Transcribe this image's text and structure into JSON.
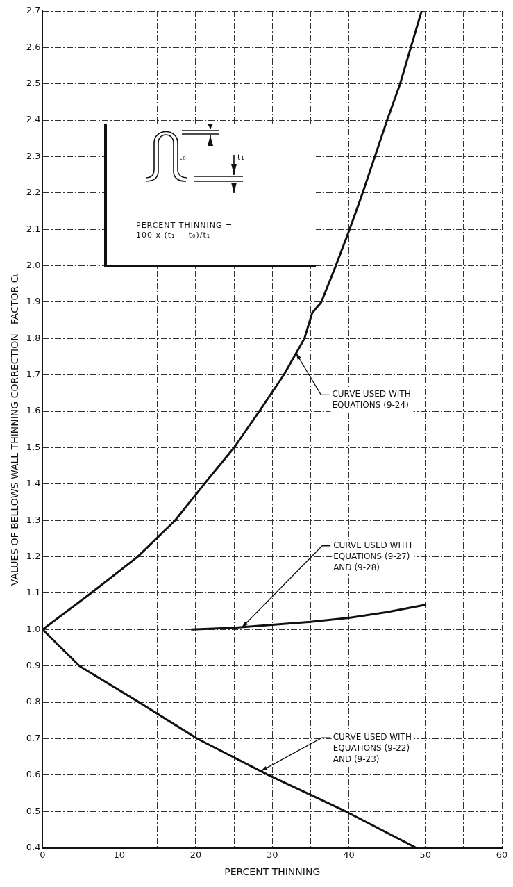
{
  "chart_data": {
    "type": "line",
    "xlabel": "PERCENT THINNING",
    "ylabel": "VALUES OF BELLOWS WALL THINNING CORRECTION   FACTOR Cₜ",
    "xlim": [
      0,
      60
    ],
    "ylim": [
      0.4,
      2.7
    ],
    "xticks": [
      0,
      {
        "value": 5,
        "label": null
      },
      10,
      {
        "value": 15,
        "label": null
      },
      20,
      {
        "value": 25,
        "label": null
      },
      30,
      {
        "value": 35,
        "label": null
      },
      40,
      {
        "value": 45,
        "label": null
      },
      50,
      {
        "value": 55,
        "label": null
      },
      60
    ],
    "yticks": [
      0.4,
      0.5,
      0.6,
      0.7,
      0.8,
      0.9,
      {
        "value": 1,
        "label": "1.0"
      },
      1.1,
      1.2,
      1.3,
      1.4,
      1.5,
      1.6,
      1.7,
      1.8,
      1.9,
      {
        "value": 2,
        "label": "2.0"
      },
      2.1,
      2.2,
      2.3,
      2.4,
      2.5,
      2.6,
      2.7
    ],
    "grid": true,
    "legend": false,
    "marker": "none",
    "line_style": "solid",
    "series": [
      {
        "color": "#111111",
        "x": [
          0,
          6.3,
          12.4,
          17.3,
          21.1,
          25,
          28.3,
          31.5,
          34.2,
          35.2,
          36.4,
          38.3,
          40.1,
          41.8,
          43.4,
          45,
          46.7,
          48.1,
          49.5
        ],
        "values": [
          1,
          1.1,
          1.2,
          1.3,
          1.4,
          1.5,
          1.6,
          1.7,
          1.8,
          1.87,
          1.9,
          2,
          2.1,
          2.2,
          2.3,
          2.4,
          2.5,
          2.6,
          2.7
        ]
      },
      {
        "color": "#111111",
        "x": [
          19.5,
          25,
          30,
          35,
          40,
          45,
          50
        ],
        "values": [
          1,
          1.005,
          1.013,
          1.021,
          1.032,
          1.048,
          1.068
        ]
      },
      {
        "color": "#111111",
        "x": [
          0,
          4.8,
          12.6,
          20.2,
          29.5,
          39.6,
          48.8
        ],
        "values": [
          1,
          0.9,
          0.8,
          0.7,
          0.6,
          0.5,
          0.4
        ]
      }
    ],
    "annotations": [
      "t₀",
      "t₁",
      "PERCENT THINNING =\n100 x (t₁ − t₀)/t₁",
      {
        "text": "CURVE USED WITH\nEQUATIONS (9-24)",
        "x": 33.1,
        "y": 1.76
      },
      {
        "text": "CURVE USED WITH\nEQUATIONS (9-27)\nAND (9-28)",
        "x": 26,
        "y": 1.005
      },
      {
        "text": "CURVE USED WITH\nEQUATIONS (9-22)\nAND (9-23)",
        "x": 28.5,
        "y": 0.611
      }
    ]
  }
}
